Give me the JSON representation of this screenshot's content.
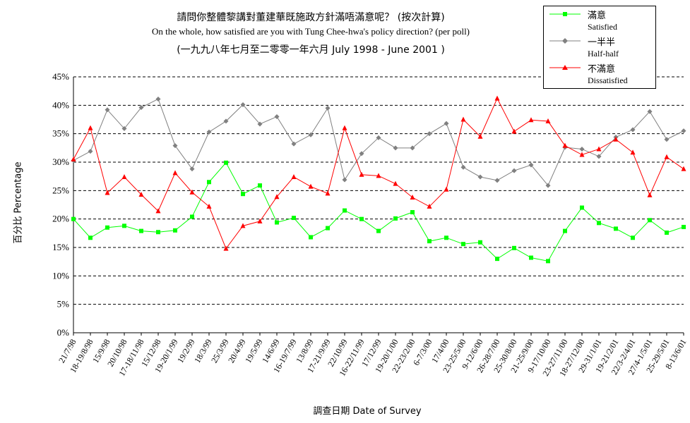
{
  "header": {
    "title_zh": "請問你整體黎講對董建華既施政方針滿唔滿意呢？ (按次計算)",
    "title_en": "On the whole, how satisfied are you with Tung Chee-hwa's policy direction? (per poll)",
    "period": "(一九九八年七月至二零零一年六月 July 1998 - June 2001 )"
  },
  "legend": [
    {
      "zh": "滿意",
      "en": "Satisfied",
      "color": "#00ff00",
      "marker": "square"
    },
    {
      "zh": "一半半",
      "en": "Half-half",
      "color": "#808080",
      "marker": "diamond"
    },
    {
      "zh": "不滿意",
      "en": "Dissatisfied",
      "color": "#ff0000",
      "marker": "triangle"
    }
  ],
  "axes": {
    "ylabel": "百分比 Percentage",
    "xlabel": "調查日期 Date of Survey"
  },
  "chart_data": {
    "type": "line",
    "title": "請問你整體黎講對董建華既施政方針滿唔滿意呢？ (按次計算)",
    "xlabel": "調查日期 Date of Survey",
    "ylabel": "百分比 Percentage",
    "ylim": [
      0,
      45
    ],
    "yticks": [
      "0%",
      "5%",
      "10%",
      "15%",
      "20%",
      "25%",
      "30%",
      "35%",
      "40%",
      "45%"
    ],
    "grid": "horizontal dashed",
    "legend_position": "top-right",
    "categories": [
      "21/7/98",
      "18-19/8/98",
      "15/9/98",
      "20/10/98",
      "17-18/11/98",
      "15/12/98",
      "19-20/1/99",
      "19/2/99",
      "18/3/99",
      "25/3/99",
      "20/4/99",
      "19/5/99",
      "14/6/99",
      "16-19/7/99",
      "13/8/99",
      "17-21/9/99",
      "22/10/99",
      "16-22/11/99",
      "17/12/99",
      "19-20/1/00",
      "22-23/2/00",
      "6-7/3/00",
      "17/4/00",
      "23-25/5/00",
      "9-12/6/00",
      "26-28/7/00",
      "25-30/8/00",
      "21-25/9/00",
      "9-17/10/00",
      "23-27/11/00",
      "18-27/12/00",
      "29-31/1/01",
      "19-21/2/01",
      "22/3-2/4/01",
      "27/4-1/5/01",
      "25-29/5/01",
      "8-13/6/01"
    ],
    "series": [
      {
        "name": "滿意 Satisfied",
        "color": "#00ff00",
        "marker": "square",
        "values": [
          20.0,
          16.7,
          18.5,
          18.8,
          17.9,
          17.7,
          18.0,
          20.4,
          26.5,
          29.9,
          24.4,
          25.9,
          19.4,
          20.2,
          16.8,
          18.4,
          21.5,
          20.0,
          17.9,
          20.1,
          21.2,
          16.1,
          16.7,
          15.6,
          15.9,
          13.0,
          14.9,
          13.2,
          12.6,
          17.9,
          22.0,
          19.3,
          18.3,
          16.7,
          19.8,
          17.6,
          18.6
        ]
      },
      {
        "name": "一半半 Half-half",
        "color": "#808080",
        "marker": "diamond",
        "values": [
          30.3,
          31.9,
          39.2,
          35.9,
          39.6,
          41.1,
          32.9,
          28.8,
          35.3,
          37.2,
          40.1,
          36.7,
          38.0,
          33.2,
          34.8,
          39.5,
          26.9,
          31.5,
          34.3,
          32.5,
          32.5,
          35.0,
          36.8,
          29.1,
          27.4,
          26.8,
          28.5,
          29.5,
          25.9,
          32.6,
          32.3,
          31.0,
          34.4,
          35.7,
          38.9,
          34.0,
          35.5
        ]
      },
      {
        "name": "不滿意 Dissatisfied",
        "color": "#ff0000",
        "marker": "triangle",
        "values": [
          30.5,
          36.0,
          24.6,
          27.4,
          24.3,
          21.4,
          28.1,
          24.7,
          22.2,
          14.8,
          18.8,
          19.6,
          23.9,
          27.4,
          25.7,
          24.5,
          36.0,
          27.8,
          27.6,
          26.2,
          23.8,
          22.2,
          25.2,
          37.5,
          34.5,
          41.2,
          35.4,
          37.4,
          37.2,
          32.9,
          31.3,
          32.3,
          34.0,
          31.7,
          24.2,
          30.9,
          28.8
        ]
      }
    ]
  }
}
